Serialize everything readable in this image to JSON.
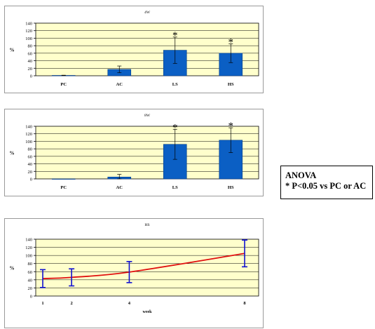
{
  "colors": {
    "plot_bg": "#ffffcc",
    "bar": "#0b5fc4",
    "bar_edge": "#083f8a",
    "line": "#e01010",
    "error_bar": "#1010d0",
    "grid": "#000000"
  },
  "legend_box": {
    "line1": "ANOVA",
    "line2": "* P<0.05 vs PC or AC"
  },
  "chart_data": [
    {
      "type": "bar",
      "title": "4W",
      "ylabel": "%",
      "xlabel": "",
      "categories": [
        "PC",
        "AC",
        "LS",
        "HS"
      ],
      "values": [
        1,
        17,
        68,
        60
      ],
      "errors": [
        0.5,
        9,
        35,
        25
      ],
      "significance": [
        "",
        "",
        "*",
        "*"
      ],
      "ylim": [
        0,
        140
      ],
      "yticks": [
        0,
        20,
        40,
        60,
        80,
        100,
        120,
        140
      ],
      "grid": true
    },
    {
      "type": "bar",
      "title": "8W",
      "ylabel": "%",
      "xlabel": "",
      "categories": [
        "PC",
        "AC",
        "LS",
        "HS"
      ],
      "values": [
        0,
        5,
        92,
        103
      ],
      "errors": [
        0,
        7,
        40,
        33
      ],
      "significance": [
        "",
        "",
        "*",
        "*"
      ],
      "ylim": [
        0,
        140
      ],
      "yticks": [
        0,
        20,
        40,
        60,
        80,
        100,
        120,
        140
      ],
      "grid": true
    },
    {
      "type": "line",
      "title": "HS",
      "ylabel": "%",
      "xlabel": "week",
      "x": [
        1,
        2,
        4,
        8
      ],
      "xticks": [
        1,
        2,
        4,
        8
      ],
      "series": [
        {
          "values": [
            43,
            46,
            59,
            105
          ],
          "errors": [
            22,
            21,
            26,
            33
          ]
        }
      ],
      "ylim": [
        0,
        140
      ],
      "yticks": [
        0,
        20,
        40,
        60,
        80,
        100,
        120,
        140
      ],
      "grid": true
    }
  ]
}
